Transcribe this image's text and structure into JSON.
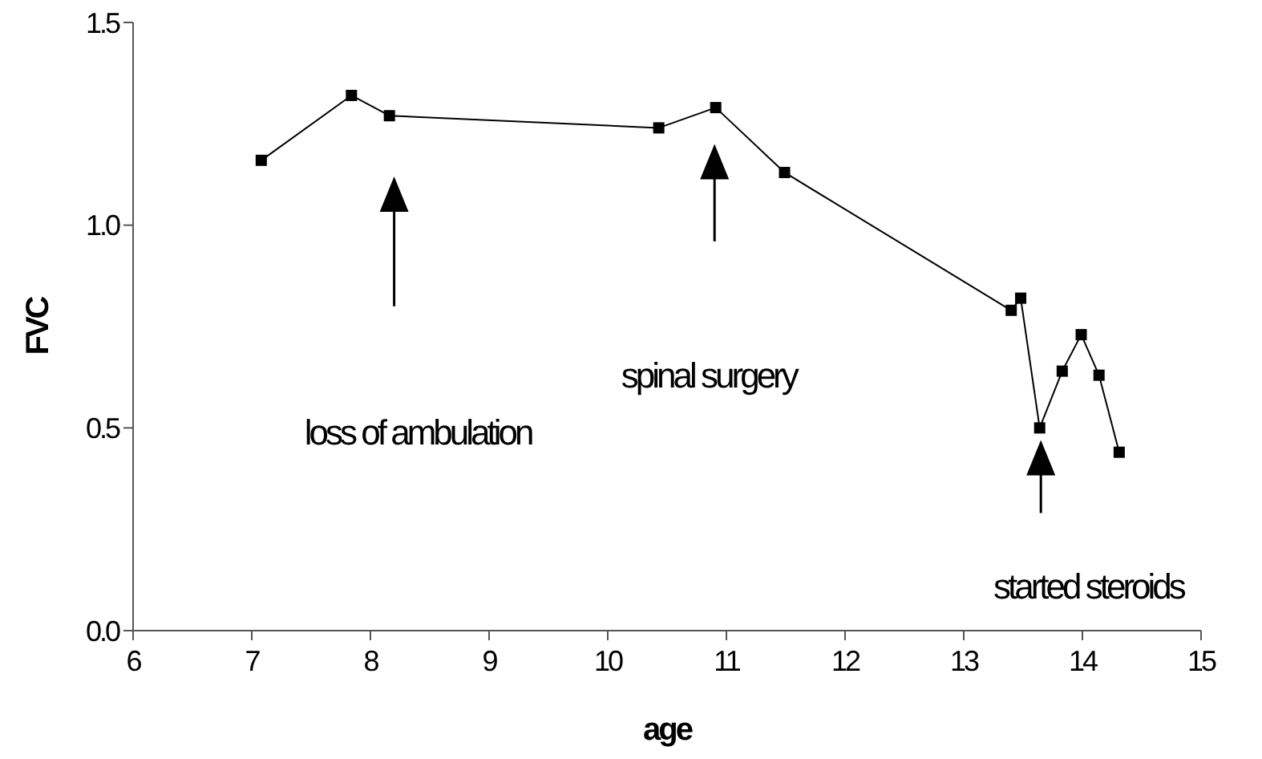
{
  "chart_data": {
    "type": "line",
    "xlabel": "age",
    "ylabel": "FVC",
    "x": [
      7.08,
      7.84,
      8.16,
      10.43,
      10.91,
      11.49,
      13.4,
      13.48,
      13.64,
      13.83,
      13.99,
      14.14,
      14.31
    ],
    "series": [
      {
        "color": "#000000",
        "values": [
          1.16,
          1.32,
          1.27,
          1.24,
          1.29,
          1.13,
          0.79,
          0.82,
          0.5,
          0.64,
          0.73,
          0.63,
          0.44
        ]
      }
    ],
    "xlim": [
      6,
      15
    ],
    "xticks": [
      6,
      7,
      8,
      9,
      10,
      11,
      12,
      13,
      14,
      15
    ],
    "ylim": [
      0,
      1.5
    ],
    "yticks": [
      {
        "value": 0,
        "label": "0.0"
      },
      {
        "value": 0.5,
        "label": "0.5"
      },
      {
        "value": 1,
        "label": "1.0"
      },
      {
        "value": 1.5,
        "label": "1.5"
      }
    ],
    "marker": "square",
    "line_style": "solid",
    "grid": false,
    "annotations": [
      "loss of ambulation",
      "spinal surgery",
      "started steroids"
    ]
  }
}
